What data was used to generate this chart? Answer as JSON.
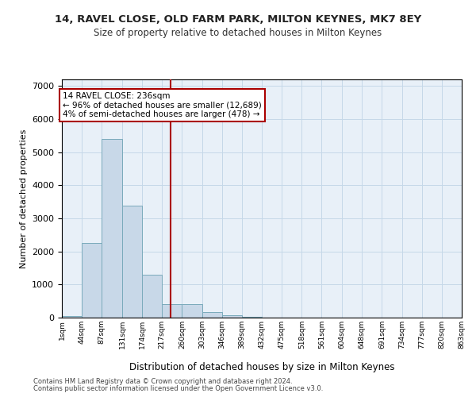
{
  "title1": "14, RAVEL CLOSE, OLD FARM PARK, MILTON KEYNES, MK7 8EY",
  "title2": "Size of property relative to detached houses in Milton Keynes",
  "xlabel": "Distribution of detached houses by size in Milton Keynes",
  "ylabel": "Number of detached properties",
  "bar_edges": [
    1,
    44,
    87,
    131,
    174,
    217,
    260,
    303,
    346,
    389,
    432,
    475,
    518,
    561,
    604,
    648,
    691,
    734,
    777,
    820,
    863
  ],
  "bar_heights": [
    55,
    2250,
    5400,
    3380,
    1300,
    400,
    400,
    160,
    80,
    20,
    5,
    2,
    1,
    0,
    0,
    0,
    0,
    0,
    0,
    0
  ],
  "bar_color": "#c8d8e8",
  "bar_edgecolor": "#7aaabb",
  "property_line_x": 236,
  "property_line_color": "#aa0000",
  "annotation_text": "14 RAVEL CLOSE: 236sqm\n← 96% of detached houses are smaller (12,689)\n4% of semi-detached houses are larger (478) →",
  "annotation_box_color": "#ffffff",
  "annotation_box_edgecolor": "#aa0000",
  "ylim": [
    0,
    7200
  ],
  "yticks": [
    0,
    1000,
    2000,
    3000,
    4000,
    5000,
    6000,
    7000
  ],
  "grid_color": "#c5d8e8",
  "background_color": "#e8f0f8",
  "footer1": "Contains HM Land Registry data © Crown copyright and database right 2024.",
  "footer2": "Contains public sector information licensed under the Open Government Licence v3.0."
}
